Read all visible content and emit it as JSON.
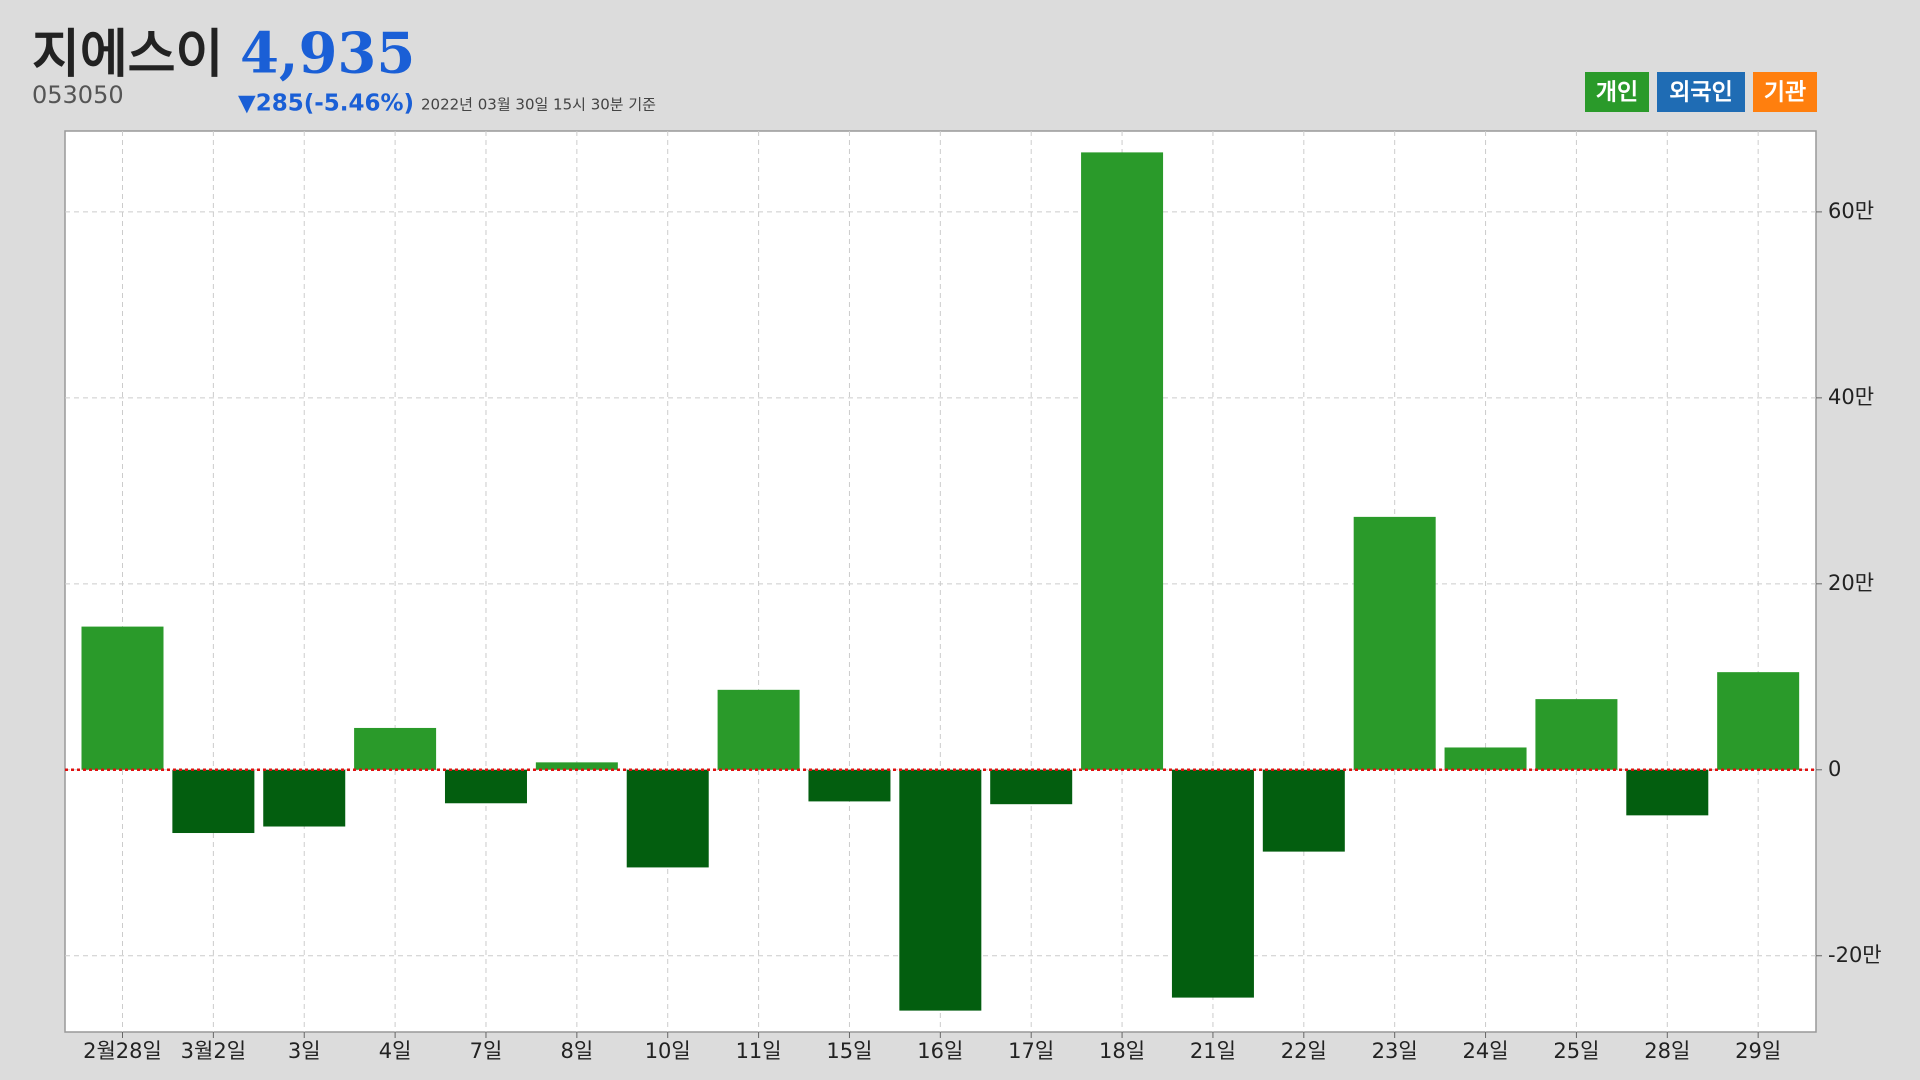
{
  "header": {
    "title": "지에스이",
    "price": "4,935",
    "code": "053050",
    "change": "▼285(-5.46%)",
    "timestamp": "2022년 03월 30일 15시 30분 기준"
  },
  "legend_buttons": [
    {
      "label": "개인",
      "color": "#2a9a2a"
    },
    {
      "label": "외국인",
      "color": "#1f6cb4"
    },
    {
      "label": "기관",
      "color": "#ff7f0e"
    }
  ],
  "chart_data": {
    "type": "bar",
    "categories": [
      "2월28일",
      "3월2일",
      "3일",
      "4일",
      "7일",
      "8일",
      "10일",
      "11일",
      "15일",
      "16일",
      "17일",
      "18일",
      "21일",
      "22일",
      "23일",
      "24일",
      "25일",
      "28일",
      "29일"
    ],
    "series": [
      {
        "name": "개인",
        "values": [
          15.4,
          -6.8,
          -6.1,
          4.5,
          -3.6,
          0.8,
          -10.5,
          8.6,
          -3.4,
          -25.9,
          -3.7,
          66.4,
          -24.5,
          -8.8,
          27.2,
          2.4,
          7.6,
          -4.9,
          10.5
        ]
      }
    ],
    "positive_color": "#2a9a2a",
    "negative_color": "#035e0f",
    "zero_line_color": "#e01010",
    "ylim": [
      -28.2,
      68.7
    ],
    "yticks": [
      {
        "value": -20,
        "label": "-20만"
      },
      0,
      {
        "value": 20,
        "label": "20만"
      },
      {
        "value": 40,
        "label": "40만"
      },
      {
        "value": 60,
        "label": "60만"
      }
    ],
    "grid": true
  }
}
